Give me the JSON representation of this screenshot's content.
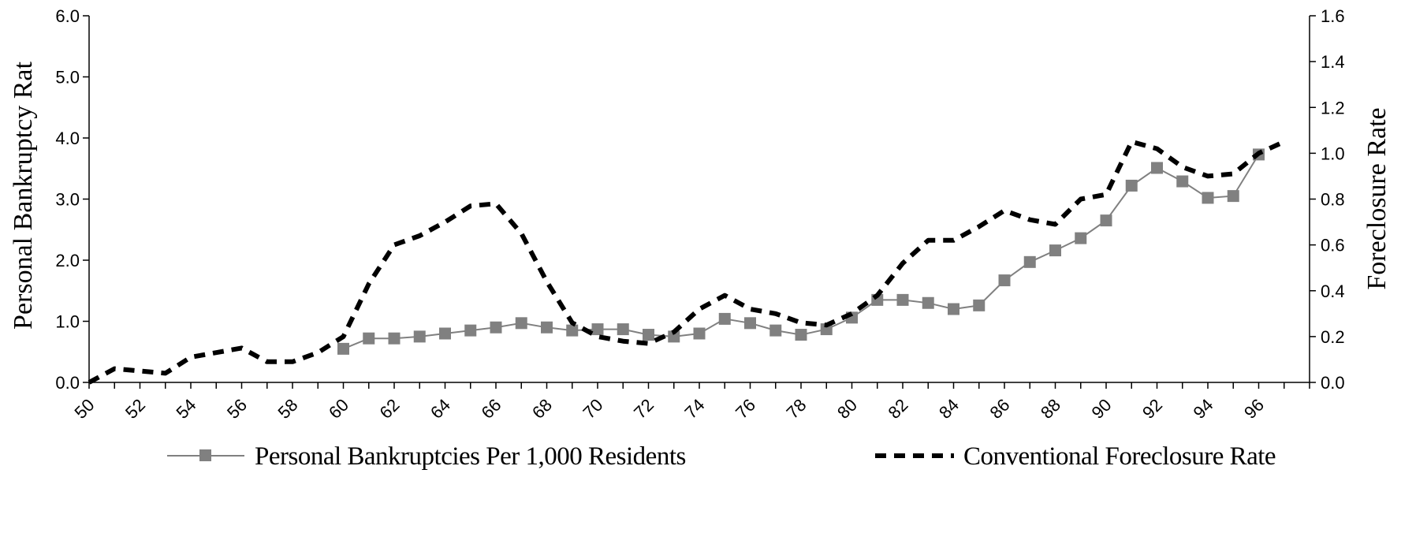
{
  "chart_data": {
    "type": "line",
    "title": "",
    "xlabel": "",
    "ylabel": "Personal Bankruptcy Rat",
    "y2label": "Foreclosure Rate",
    "ylim": [
      0,
      6
    ],
    "y2lim": [
      0,
      1.6
    ],
    "xlim": [
      50,
      98
    ],
    "x_tick_labels": [
      "50",
      "52",
      "54",
      "56",
      "58",
      "60",
      "62",
      "64",
      "66",
      "68",
      "70",
      "72",
      "74",
      "76",
      "78",
      "80",
      "82",
      "84",
      "86",
      "88",
      "90",
      "92",
      "94",
      "96"
    ],
    "y_tick_labels": [
      "0.0",
      "1.0",
      "2.0",
      "3.0",
      "4.0",
      "5.0",
      "6.0"
    ],
    "y2_tick_labels": [
      "0.0",
      "0.2",
      "0.4",
      "0.6",
      "0.8",
      "1.0",
      "1.2",
      "1.4",
      "1.6"
    ],
    "legend_position": "bottom",
    "grid": false,
    "series": [
      {
        "name": "Personal Bankruptcies Per 1,000 Residents",
        "axis": "left",
        "style": "solid-square-markers",
        "color": "#808080",
        "x": [
          60,
          61,
          62,
          63,
          64,
          65,
          66,
          67,
          68,
          69,
          70,
          71,
          72,
          73,
          74,
          75,
          76,
          77,
          78,
          79,
          80,
          81,
          82,
          83,
          84,
          85,
          86,
          87,
          88,
          89,
          90,
          91,
          92,
          93,
          94,
          95,
          96
        ],
        "values": [
          0.55,
          0.72,
          0.72,
          0.75,
          0.8,
          0.85,
          0.9,
          0.97,
          0.9,
          0.85,
          0.87,
          0.87,
          0.78,
          0.75,
          0.8,
          1.04,
          0.97,
          0.85,
          0.78,
          0.87,
          1.06,
          1.35,
          1.35,
          1.3,
          1.2,
          1.26,
          1.67,
          1.97,
          2.16,
          2.36,
          2.65,
          3.22,
          3.51,
          3.29,
          3.02,
          3.05,
          3.73
        ]
      },
      {
        "name": "Conventional Foreclosure Rate",
        "axis": "right",
        "style": "dashed",
        "color": "#000000",
        "x": [
          50,
          51,
          52,
          53,
          54,
          55,
          56,
          57,
          58,
          59,
          60,
          61,
          62,
          63,
          64,
          65,
          66,
          67,
          68,
          69,
          70,
          71,
          72,
          73,
          74,
          75,
          76,
          77,
          78,
          79,
          80,
          81,
          82,
          83,
          84,
          85,
          86,
          87,
          88,
          89,
          90,
          91,
          92,
          93,
          94,
          95,
          96,
          97
        ],
        "values": [
          0.0,
          0.06,
          0.05,
          0.04,
          0.11,
          0.13,
          0.15,
          0.09,
          0.09,
          0.13,
          0.2,
          0.43,
          0.6,
          0.64,
          0.7,
          0.77,
          0.78,
          0.65,
          0.44,
          0.26,
          0.2,
          0.18,
          0.17,
          0.22,
          0.32,
          0.38,
          0.32,
          0.3,
          0.26,
          0.25,
          0.3,
          0.38,
          0.52,
          0.62,
          0.62,
          0.68,
          0.75,
          0.71,
          0.69,
          0.8,
          0.82,
          1.05,
          1.02,
          0.94,
          0.9,
          0.91,
          1.0,
          1.05
        ]
      }
    ]
  }
}
